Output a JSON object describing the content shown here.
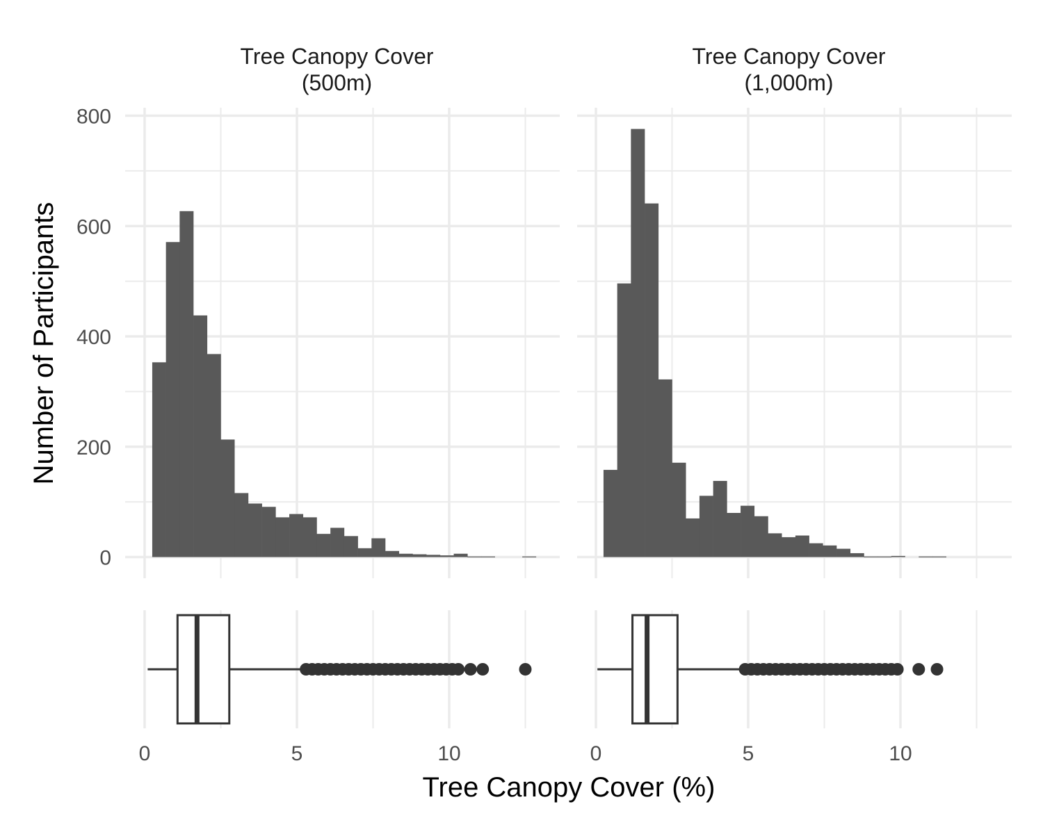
{
  "chart_data": {
    "type": "histogram+boxplot",
    "xlabel": "Tree Canopy Cover (%)",
    "ylabel": "Number of Participants",
    "xlim": [
      -0.5,
      13.3
    ],
    "ylim": [
      0,
      800
    ],
    "x_ticks": [
      0,
      5,
      10
    ],
    "y_ticks": [
      0,
      200,
      400,
      600,
      800
    ],
    "grid": true,
    "colors": {
      "bar": "#595959",
      "box": "#333333",
      "grid": "#ebebeb"
    },
    "bin_width": 0.45,
    "panels": [
      {
        "title": [
          "Tree Canopy Cover",
          "(500m)"
        ],
        "histogram": {
          "bin_starts": [
            0.25,
            0.7,
            1.15,
            1.6,
            2.05,
            2.5,
            2.95,
            3.4,
            3.85,
            4.3,
            4.75,
            5.2,
            5.65,
            6.1,
            6.55,
            7.0,
            7.45,
            7.9,
            8.35,
            8.8,
            9.25,
            9.7,
            10.15,
            10.6,
            11.05,
            11.5,
            11.95,
            12.4
          ],
          "counts": [
            353,
            571,
            627,
            438,
            368,
            213,
            116,
            97,
            91,
            72,
            78,
            72,
            42,
            53,
            38,
            16,
            34,
            11,
            6,
            5,
            4,
            3,
            6,
            1,
            1,
            0,
            0,
            1
          ]
        },
        "boxplot": {
          "whisker_low": 0.1,
          "q1": 1.08,
          "median": 1.72,
          "q3": 2.78,
          "whisker_high": 5.2,
          "outliers": [
            5.3,
            5.5,
            5.7,
            5.9,
            6.1,
            6.3,
            6.5,
            6.7,
            6.9,
            7.1,
            7.3,
            7.5,
            7.7,
            7.9,
            8.1,
            8.3,
            8.5,
            8.7,
            8.9,
            9.1,
            9.3,
            9.5,
            9.7,
            9.9,
            10.1,
            10.3,
            10.7,
            11.1,
            12.5
          ]
        }
      },
      {
        "title": [
          "Tree Canopy Cover",
          "(1,000m)"
        ],
        "histogram": {
          "bin_starts": [
            0.25,
            0.7,
            1.15,
            1.6,
            2.05,
            2.5,
            2.95,
            3.4,
            3.85,
            4.3,
            4.75,
            5.2,
            5.65,
            6.1,
            6.55,
            7.0,
            7.45,
            7.9,
            8.35,
            8.8,
            9.25,
            9.7,
            10.15,
            10.6,
            11.05
          ],
          "counts": [
            158,
            496,
            776,
            641,
            322,
            171,
            70,
            111,
            138,
            80,
            93,
            74,
            43,
            36,
            39,
            25,
            21,
            15,
            7,
            1,
            1,
            2,
            0,
            1,
            1
          ]
        },
        "boxplot": {
          "whisker_low": 0.05,
          "q1": 1.2,
          "median": 1.68,
          "q3": 2.68,
          "whisker_high": 4.8,
          "outliers": [
            4.9,
            5.1,
            5.3,
            5.5,
            5.7,
            5.9,
            6.1,
            6.3,
            6.5,
            6.7,
            6.9,
            7.1,
            7.3,
            7.5,
            7.7,
            7.9,
            8.1,
            8.3,
            8.5,
            8.7,
            8.9,
            9.1,
            9.3,
            9.5,
            9.7,
            9.9,
            10.6,
            11.2
          ]
        }
      }
    ]
  }
}
